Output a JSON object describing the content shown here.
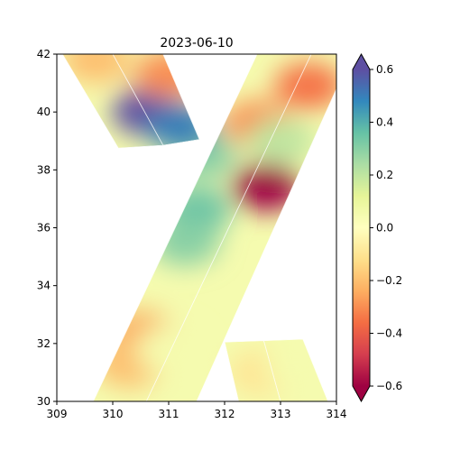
{
  "chart_data": {
    "type": "heatmap",
    "title": "2023-06-10",
    "xlabel": "",
    "ylabel": "",
    "xlim": [
      309,
      314
    ],
    "ylim": [
      30,
      42
    ],
    "xticks": [
      "309",
      "310",
      "311",
      "312",
      "313",
      "314"
    ],
    "yticks": [
      "30",
      "32",
      "34",
      "36",
      "38",
      "40",
      "42"
    ],
    "grid": false,
    "colorbar": {
      "colormap": "Spectral",
      "range": [
        -0.6,
        0.6
      ],
      "extend": "both",
      "ticks": [
        "-0.6",
        "-0.4",
        "-0.2",
        "0.0",
        "0.2",
        "0.4",
        "0.6"
      ],
      "stops": [
        "#9e0142",
        "#d53e4f",
        "#f46d43",
        "#fdae61",
        "#fee08b",
        "#ffffbf",
        "#e6f598",
        "#abdda4",
        "#66c2a5",
        "#3288bd",
        "#5e4fa2"
      ]
    },
    "swaths": [
      {
        "corners": [
          [
            309.65,
            30.0
          ],
          [
            312.58,
            42.0
          ],
          [
            313.55,
            42.0
          ],
          [
            310.6,
            30.0
          ]
        ]
      },
      {
        "corners": [
          [
            310.6,
            30.0
          ],
          [
            313.55,
            42.0
          ],
          [
            314.0,
            42.0
          ],
          [
            314.0,
            40.8
          ],
          [
            311.5,
            30.0
          ]
        ]
      },
      {
        "corners": [
          [
            309.1,
            42.0
          ],
          [
            310.0,
            42.0
          ],
          [
            310.9,
            38.85
          ],
          [
            310.1,
            38.75
          ]
        ]
      },
      {
        "corners": [
          [
            310.0,
            42.0
          ],
          [
            310.9,
            42.0
          ],
          [
            311.55,
            39.05
          ],
          [
            310.9,
            38.85
          ]
        ]
      },
      {
        "corners": [
          [
            312.0,
            32.05
          ],
          [
            312.7,
            32.1
          ],
          [
            313.0,
            30.0
          ],
          [
            312.25,
            30.0
          ]
        ]
      },
      {
        "corners": [
          [
            312.7,
            32.1
          ],
          [
            313.4,
            32.15
          ],
          [
            313.85,
            30.0
          ],
          [
            313.0,
            30.0
          ]
        ]
      }
    ],
    "anomalies": [
      {
        "x": 312.75,
        "y": 37.4,
        "value": -0.6
      },
      {
        "x": 313.5,
        "y": 40.9,
        "value": -0.35
      },
      {
        "x": 312.6,
        "y": 39.6,
        "value": -0.3
      },
      {
        "x": 313.0,
        "y": 39.0,
        "value": 0.2
      },
      {
        "x": 311.6,
        "y": 38.5,
        "value": 0.3
      },
      {
        "x": 311.5,
        "y": 36.6,
        "value": 0.35
      },
      {
        "x": 311.3,
        "y": 35.5,
        "value": 0.3
      },
      {
        "x": 310.5,
        "y": 32.3,
        "value": -0.25
      },
      {
        "x": 310.3,
        "y": 31.3,
        "value": -0.2
      },
      {
        "x": 311.0,
        "y": 31.8,
        "value": 0.05
      },
      {
        "x": 310.6,
        "y": 40.0,
        "value": 0.6
      },
      {
        "x": 311.2,
        "y": 39.5,
        "value": 0.5
      },
      {
        "x": 309.7,
        "y": 41.8,
        "value": -0.2
      },
      {
        "x": 311.0,
        "y": 41.3,
        "value": -0.3
      },
      {
        "x": 312.7,
        "y": 31.0,
        "value": -0.1
      },
      {
        "x": 313.3,
        "y": 31.2,
        "value": 0.05
      }
    ]
  }
}
